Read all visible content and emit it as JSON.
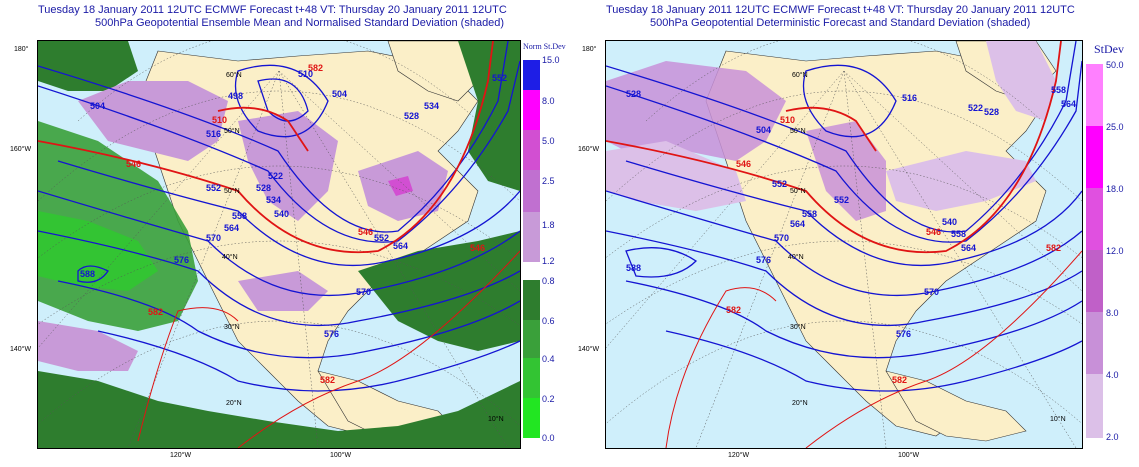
{
  "left_panel": {
    "title_line1": "Tuesday 18 January 2011 12UTC ECMWF Forecast t+48  VT: Thursday 20 January 2011 12UTC",
    "title_line2": "500hPa Geopotential Ensemble Mean and Normalised Standard Deviation (shaded)",
    "colorbar": {
      "title": "Norm St.Dev",
      "bins": [
        {
          "label": "15.0",
          "color": "#1e1ee6"
        },
        {
          "label": "8.0",
          "color": "#ff00ff"
        },
        {
          "label": "5.0",
          "color": "#d24fd2"
        },
        {
          "label": "2.5",
          "color": "#c070d0"
        },
        {
          "label": "1.8",
          "color": "#c89ad8"
        },
        {
          "label": "1.2",
          "color": ""
        },
        {
          "label": "0.8",
          "color": "#2e7d2e"
        },
        {
          "label": "0.6",
          "color": "#3aa03a"
        },
        {
          "label": "0.4",
          "color": "#33c433"
        },
        {
          "label": "0.2",
          "color": "#22e622"
        },
        {
          "label": "0.0",
          "color": ""
        }
      ]
    },
    "lat_labels": [
      "180°",
      "160°W",
      "140°W"
    ],
    "lon_labels": [
      "120°W",
      "100°W"
    ],
    "inner_labels": [
      "60°N",
      "50°N",
      "40°N",
      "30°N",
      "20°N",
      "10°N"
    ],
    "contour_labels_blue": [
      "588",
      "504",
      "510",
      "516",
      "552",
      "570",
      "564",
      "558",
      "576",
      "528",
      "534",
      "540",
      "522",
      "552",
      "564",
      "570",
      "576",
      "498",
      "504",
      "528",
      "534",
      "552"
    ],
    "contour_labels_red": [
      "510",
      "546",
      "546",
      "546",
      "582",
      "582",
      "582"
    ]
  },
  "right_panel": {
    "title_line1": "Tuesday 18 January 2011 12UTC ECMWF Forecast t+48  VT: Thursday 20 January 2011 12UTC",
    "title_line2": "500hPa Geopotential Deterministic Forecast and Standard Deviation (shaded)",
    "colorbar": {
      "title": "StDev",
      "bins": [
        {
          "label": "50.0",
          "color": "#ff80ff"
        },
        {
          "label": "25.0",
          "color": "#ff00ff"
        },
        {
          "label": "18.0",
          "color": "#e050e0"
        },
        {
          "label": "12.0",
          "color": "#c060c8"
        },
        {
          "label": "8.0",
          "color": "#c890d8"
        },
        {
          "label": "4.0",
          "color": "#dcc0e8"
        },
        {
          "label": "2.0",
          "color": ""
        }
      ]
    },
    "lat_labels": [
      "180°",
      "160°W",
      "140°W"
    ],
    "lon_labels": [
      "120°W",
      "100°W"
    ],
    "inner_labels": [
      "60°N",
      "50°N",
      "40°N",
      "30°N",
      "20°N",
      "10°N"
    ],
    "contour_labels_blue": [
      "588",
      "504",
      "528",
      "552",
      "570",
      "564",
      "558",
      "576",
      "576",
      "570",
      "564",
      "558",
      "552",
      "528",
      "522",
      "516",
      "540",
      "558",
      "564"
    ],
    "contour_labels_red": [
      "510",
      "546",
      "546",
      "582",
      "582",
      "582"
    ]
  },
  "colors": {
    "title": "#1a1aa6",
    "ocean": "#cfeffb",
    "land": "#fbefc8",
    "contour_blue": "#1414d2",
    "contour_red": "#e01414",
    "green_dark": "#2e7d2e",
    "purple_light": "#c89ad8"
  }
}
